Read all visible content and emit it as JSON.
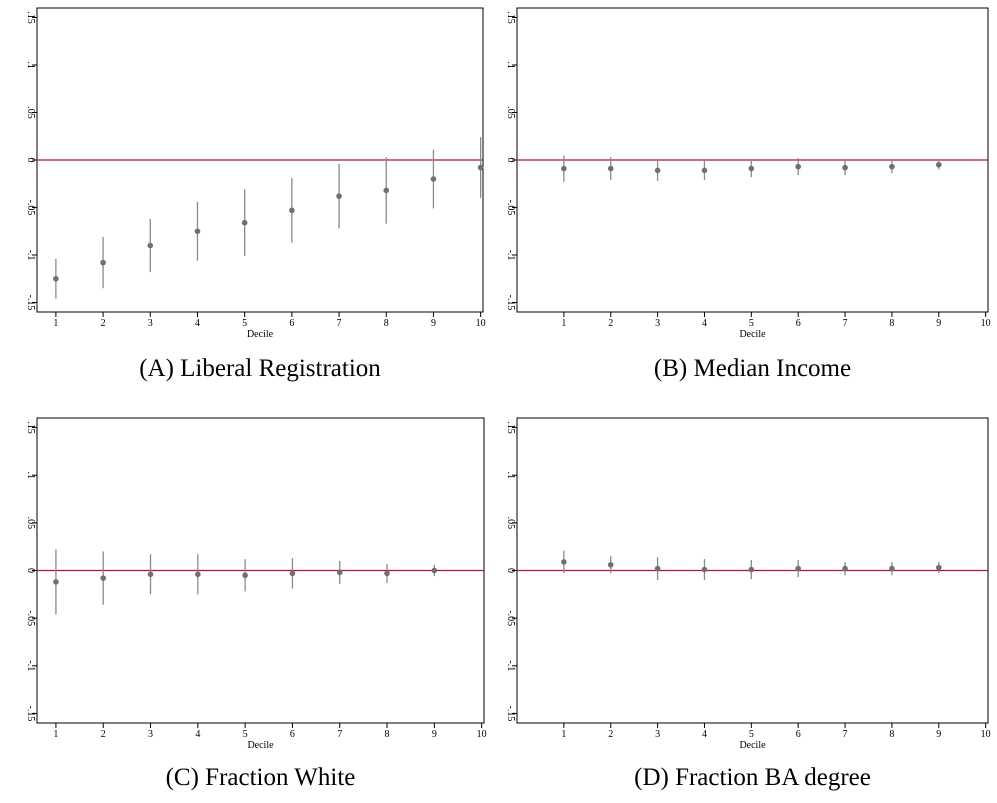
{
  "chart_data": [
    {
      "type": "scatter",
      "title": "(A) Liberal Registration",
      "xlabel": "Decile",
      "x": [
        1,
        2,
        3,
        4,
        5,
        6,
        7,
        8,
        9,
        10
      ],
      "values": [
        -0.125,
        -0.108,
        -0.09,
        -0.075,
        -0.066,
        -0.053,
        -0.038,
        -0.032,
        -0.02,
        -0.008
      ],
      "errors": [
        0.021,
        0.027,
        0.028,
        0.031,
        0.035,
        0.034,
        0.034,
        0.035,
        0.031,
        0.032
      ],
      "color": "#707070",
      "error_color": "#8a8a8a",
      "reference_line": {
        "value": 0,
        "color": "#b0103a"
      },
      "xlim": [
        0.6,
        10.05
      ],
      "xticks": [
        1,
        2,
        3,
        4,
        5,
        6,
        7,
        8,
        9,
        10
      ],
      "ylim": [
        -0.16,
        0.16
      ],
      "yticks": [
        {
          "value": -0.15,
          "label": "-.15"
        },
        {
          "value": -0.1,
          "label": "-.1"
        },
        {
          "value": -0.05,
          "label": "-.05"
        },
        0,
        {
          "value": 0.05,
          "label": ".05"
        },
        {
          "value": 0.1,
          "label": ".1"
        },
        {
          "value": 0.15,
          "label": ".15"
        }
      ]
    },
    {
      "type": "scatter",
      "title": "(B) Median Income",
      "xlabel": "Decile",
      "x": [
        1,
        2,
        3,
        4,
        5,
        6,
        7,
        8,
        9
      ],
      "values": [
        -0.009,
        -0.009,
        -0.011,
        -0.011,
        -0.009,
        -0.007,
        -0.008,
        -0.007,
        -0.005
      ],
      "errors": [
        0.014,
        0.012,
        0.011,
        0.01,
        0.009,
        0.009,
        0.008,
        0.007,
        0.005
      ],
      "color": "#707070",
      "error_color": "#8a8a8a",
      "reference_line": {
        "value": 0,
        "color": "#b0103a"
      },
      "xlim": [
        0,
        10.05
      ],
      "xticks": [
        1,
        2,
        3,
        4,
        5,
        6,
        7,
        8,
        9,
        10
      ],
      "ylim": [
        -0.16,
        0.16
      ],
      "yticks": [
        {
          "value": -0.15,
          "label": "-.15"
        },
        {
          "value": -0.1,
          "label": "-.1"
        },
        {
          "value": -0.05,
          "label": "-.05"
        },
        0,
        {
          "value": 0.05,
          "label": ".05"
        },
        {
          "value": 0.1,
          "label": ".1"
        },
        {
          "value": 0.15,
          "label": ".15"
        }
      ]
    },
    {
      "type": "scatter",
      "title": "(C) Fraction White",
      "xlabel": "Decile",
      "x": [
        1,
        2,
        3,
        4,
        5,
        6,
        7,
        8,
        9
      ],
      "values": [
        -0.012,
        -0.008,
        -0.004,
        -0.004,
        -0.005,
        -0.003,
        -0.002,
        -0.003,
        0
      ],
      "errors": [
        0.034,
        0.028,
        0.021,
        0.021,
        0.017,
        0.016,
        0.012,
        0.01,
        0.006
      ],
      "color": "#707070",
      "error_color": "#8a8a8a",
      "reference_line": {
        "value": 0,
        "color": "#b0103a"
      },
      "xlim": [
        0.6,
        10.05
      ],
      "xticks": [
        1,
        2,
        3,
        4,
        5,
        6,
        7,
        8,
        9,
        10
      ],
      "ylim": [
        -0.16,
        0.16
      ],
      "yticks": [
        {
          "value": -0.15,
          "label": "-.15"
        },
        {
          "value": -0.1,
          "label": "-.1"
        },
        {
          "value": -0.05,
          "label": "-.05"
        },
        0,
        {
          "value": 0.05,
          "label": ".05"
        },
        {
          "value": 0.1,
          "label": ".1"
        },
        {
          "value": 0.15,
          "label": ".15"
        }
      ]
    },
    {
      "type": "scatter",
      "title": "(D) Fraction BA degree",
      "xlabel": "Decile",
      "x": [
        1,
        2,
        3,
        4,
        5,
        6,
        7,
        8,
        9
      ],
      "values": [
        0.009,
        0.006,
        0.002,
        0.001,
        0.001,
        0.002,
        0.002,
        0.002,
        0.003
      ],
      "errors": [
        0.012,
        0.009,
        0.012,
        0.011,
        0.01,
        0.009,
        0.007,
        0.007,
        0.006
      ],
      "color": "#707070",
      "error_color": "#8a8a8a",
      "reference_line": {
        "value": 0,
        "color": "#b0103a"
      },
      "xlim": [
        0,
        10.05
      ],
      "xticks": [
        1,
        2,
        3,
        4,
        5,
        6,
        7,
        8,
        9,
        10
      ],
      "ylim": [
        -0.16,
        0.16
      ],
      "yticks": [
        {
          "value": -0.15,
          "label": "-.15"
        },
        {
          "value": -0.1,
          "label": "-.1"
        },
        {
          "value": -0.05,
          "label": "-.05"
        },
        0,
        {
          "value": 0.05,
          "label": ".05"
        },
        {
          "value": 0.1,
          "label": ".1"
        },
        {
          "value": 0.15,
          "label": ".15"
        }
      ]
    }
  ]
}
